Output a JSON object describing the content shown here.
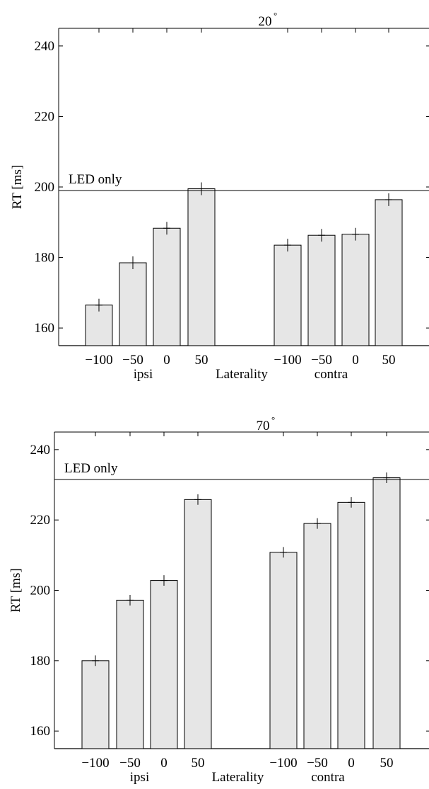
{
  "chart_data": [
    {
      "type": "bar",
      "title": "20",
      "title_degree_symbol": "°",
      "ylabel": "RT [ms]",
      "xlabel": "Laterality",
      "ylim": [
        155,
        245
      ],
      "yticks": [
        160,
        180,
        200,
        220,
        240
      ],
      "groups": [
        {
          "label": "ipsi",
          "categories": [
            "−100",
            "−50",
            "0",
            "50"
          ],
          "values": [
            166.5,
            178.5,
            188.3,
            199.5
          ],
          "errors": [
            1.8,
            1.8,
            1.8,
            1.8
          ]
        },
        {
          "label": "contra",
          "categories": [
            "−100",
            "−50",
            "0",
            "50"
          ],
          "values": [
            183.5,
            186.3,
            186.6,
            196.4
          ],
          "errors": [
            1.8,
            1.8,
            1.8,
            1.8
          ]
        }
      ],
      "reference_line": {
        "label": "LED only",
        "value": 199
      }
    },
    {
      "type": "bar",
      "title": "70",
      "title_degree_symbol": "°",
      "ylabel": "RT [ms]",
      "xlabel": "Laterality",
      "ylim": [
        155,
        245
      ],
      "yticks": [
        160,
        180,
        200,
        220,
        240
      ],
      "groups": [
        {
          "label": "ipsi",
          "categories": [
            "−100",
            "−50",
            "0",
            "50"
          ],
          "values": [
            180.0,
            197.2,
            202.8,
            225.8
          ],
          "errors": [
            1.5,
            1.5,
            1.5,
            1.5
          ]
        },
        {
          "label": "contra",
          "categories": [
            "−100",
            "−50",
            "0",
            "50"
          ],
          "values": [
            210.8,
            219.0,
            225.0,
            232.0
          ],
          "errors": [
            1.5,
            1.5,
            1.5,
            1.5
          ]
        }
      ],
      "reference_line": {
        "label": "LED only",
        "value": 231.5
      }
    }
  ]
}
